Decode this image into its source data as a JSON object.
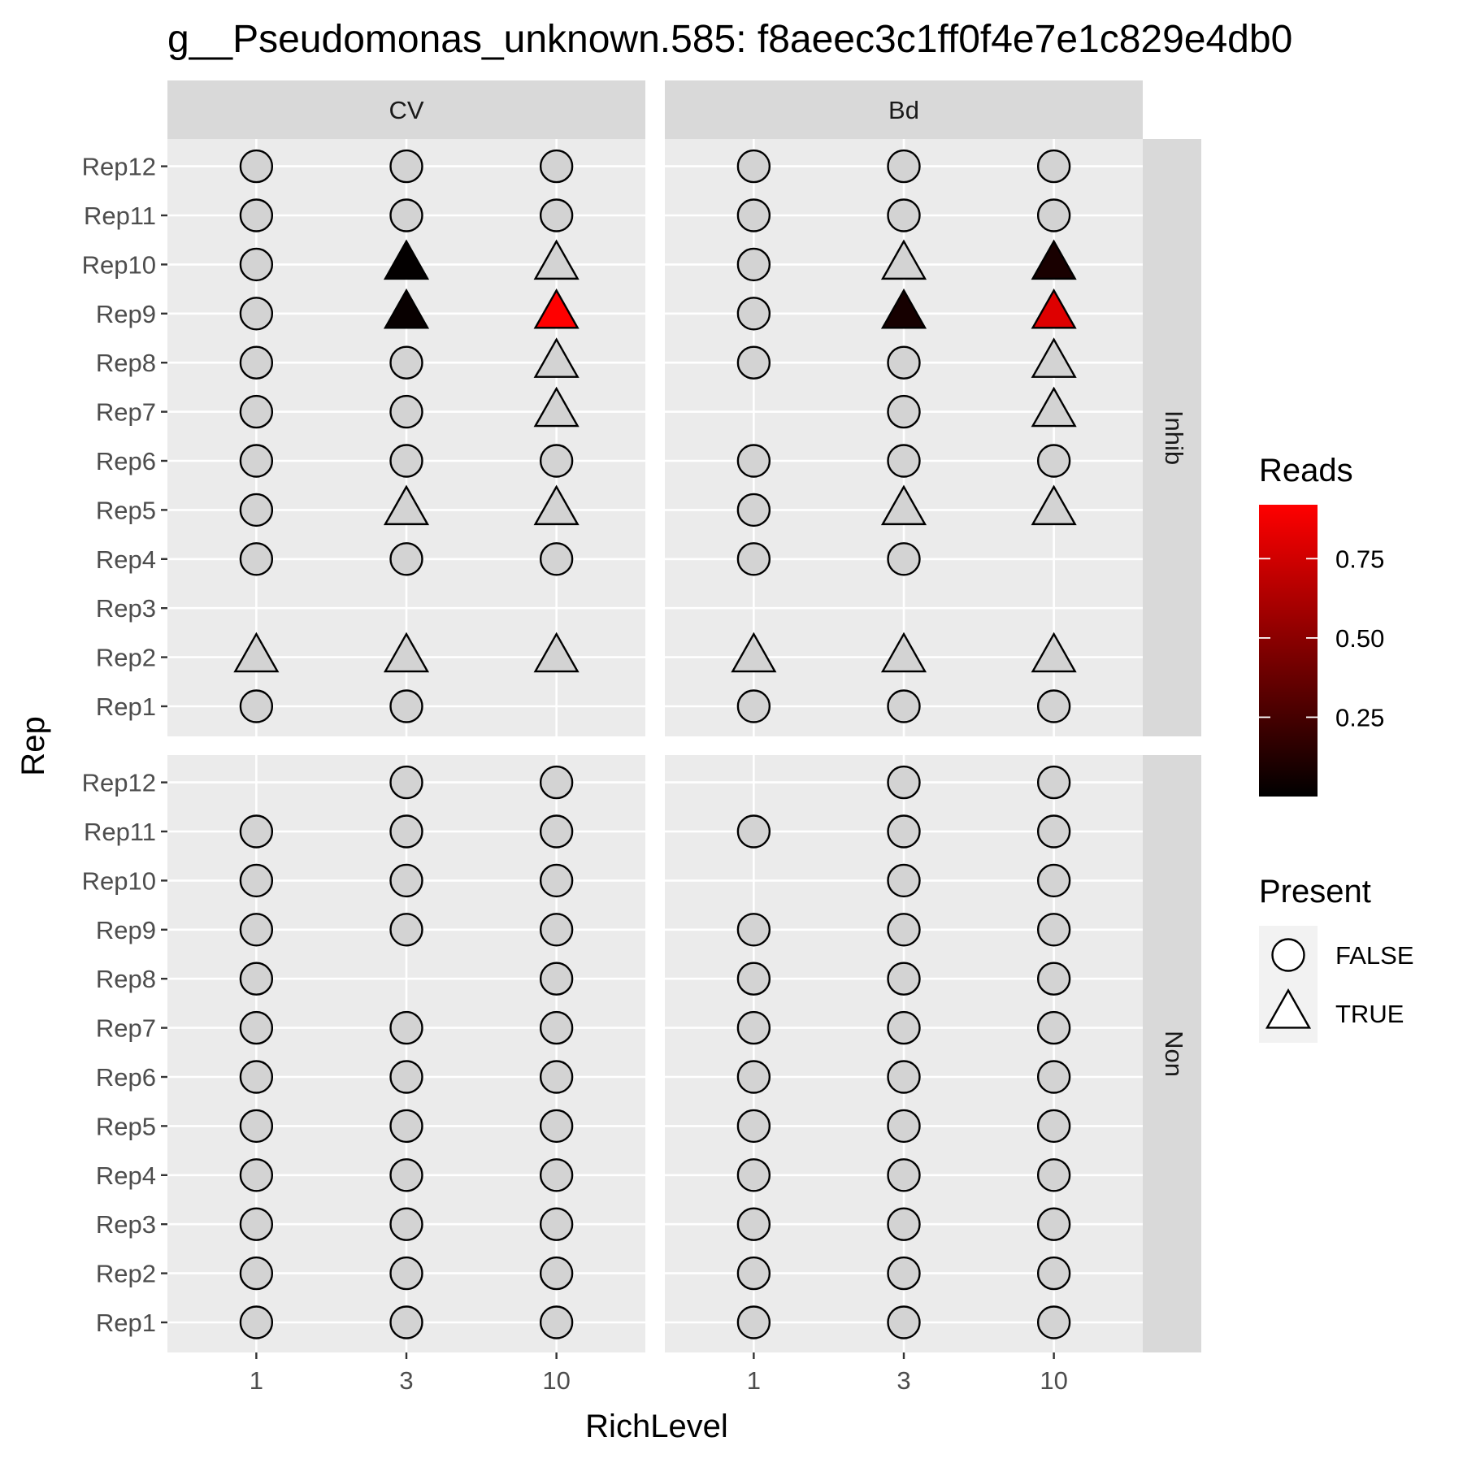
{
  "chart_data": {
    "type": "scatter",
    "title": "g__Pseudomonas_unknown.585: f8aeec3c1ff0f4e7e1c829e4db0",
    "xlabel": "RichLevel",
    "ylabel": "Rep",
    "x_categories": [
      "1",
      "3",
      "10"
    ],
    "y_categories": [
      "Rep1",
      "Rep2",
      "Rep3",
      "Rep4",
      "Rep5",
      "Rep6",
      "Rep7",
      "Rep8",
      "Rep9",
      "Rep10",
      "Rep11",
      "Rep12"
    ],
    "facet_columns": [
      "CV",
      "Bd"
    ],
    "facet_rows": [
      "Inhib",
      "Non"
    ],
    "grid": true,
    "legends": {
      "reads": {
        "title": "Reads",
        "ticks": [
          0.25,
          0.5,
          0.75
        ],
        "tick_labels": [
          "0.25",
          "0.50",
          "0.75"
        ],
        "range": [
          0.0,
          0.92
        ],
        "low_color": "#000000",
        "high_color": "#ff0000",
        "placement": "right"
      },
      "present": {
        "title": "Present",
        "entries": [
          {
            "label": "FALSE",
            "shape": "circle"
          },
          {
            "label": "TRUE",
            "shape": "triangle"
          }
        ],
        "placement": "right"
      }
    },
    "na_fill_color": "#d3d3d3",
    "panels": [
      {
        "col": "CV",
        "row": "Inhib",
        "points": [
          {
            "x": "1",
            "rep": "Rep12",
            "present": false
          },
          {
            "x": "1",
            "rep": "Rep11",
            "present": false
          },
          {
            "x": "1",
            "rep": "Rep10",
            "present": false
          },
          {
            "x": "1",
            "rep": "Rep9",
            "present": false
          },
          {
            "x": "1",
            "rep": "Rep8",
            "present": false
          },
          {
            "x": "1",
            "rep": "Rep7",
            "present": false
          },
          {
            "x": "1",
            "rep": "Rep6",
            "present": false
          },
          {
            "x": "1",
            "rep": "Rep5",
            "present": false
          },
          {
            "x": "1",
            "rep": "Rep4",
            "present": false
          },
          {
            "x": "1",
            "rep": "Rep2",
            "present": true
          },
          {
            "x": "1",
            "rep": "Rep1",
            "present": false
          },
          {
            "x": "3",
            "rep": "Rep12",
            "present": false
          },
          {
            "x": "3",
            "rep": "Rep11",
            "present": false
          },
          {
            "x": "3",
            "rep": "Rep10",
            "present": true,
            "reads": 0.01
          },
          {
            "x": "3",
            "rep": "Rep9",
            "present": true,
            "reads": 0.03
          },
          {
            "x": "3",
            "rep": "Rep8",
            "present": false
          },
          {
            "x": "3",
            "rep": "Rep7",
            "present": false
          },
          {
            "x": "3",
            "rep": "Rep6",
            "present": false
          },
          {
            "x": "3",
            "rep": "Rep5",
            "present": true
          },
          {
            "x": "3",
            "rep": "Rep4",
            "present": false
          },
          {
            "x": "3",
            "rep": "Rep2",
            "present": true
          },
          {
            "x": "3",
            "rep": "Rep1",
            "present": false
          },
          {
            "x": "10",
            "rep": "Rep12",
            "present": false
          },
          {
            "x": "10",
            "rep": "Rep11",
            "present": false
          },
          {
            "x": "10",
            "rep": "Rep10",
            "present": true
          },
          {
            "x": "10",
            "rep": "Rep9",
            "present": true,
            "reads": 0.92
          },
          {
            "x": "10",
            "rep": "Rep8",
            "present": true
          },
          {
            "x": "10",
            "rep": "Rep7",
            "present": true
          },
          {
            "x": "10",
            "rep": "Rep6",
            "present": false
          },
          {
            "x": "10",
            "rep": "Rep5",
            "present": true
          },
          {
            "x": "10",
            "rep": "Rep4",
            "present": false
          },
          {
            "x": "10",
            "rep": "Rep2",
            "present": true
          }
        ]
      },
      {
        "col": "Bd",
        "row": "Inhib",
        "points": [
          {
            "x": "1",
            "rep": "Rep12",
            "present": false
          },
          {
            "x": "1",
            "rep": "Rep11",
            "present": false
          },
          {
            "x": "1",
            "rep": "Rep10",
            "present": false
          },
          {
            "x": "1",
            "rep": "Rep9",
            "present": false
          },
          {
            "x": "1",
            "rep": "Rep8",
            "present": false
          },
          {
            "x": "1",
            "rep": "Rep6",
            "present": false
          },
          {
            "x": "1",
            "rep": "Rep5",
            "present": false
          },
          {
            "x": "1",
            "rep": "Rep4",
            "present": false
          },
          {
            "x": "1",
            "rep": "Rep2",
            "present": true
          },
          {
            "x": "1",
            "rep": "Rep1",
            "present": false
          },
          {
            "x": "3",
            "rep": "Rep12",
            "present": false
          },
          {
            "x": "3",
            "rep": "Rep11",
            "present": false
          },
          {
            "x": "3",
            "rep": "Rep10",
            "present": true
          },
          {
            "x": "3",
            "rep": "Rep9",
            "present": true,
            "reads": 0.08
          },
          {
            "x": "3",
            "rep": "Rep8",
            "present": false
          },
          {
            "x": "3",
            "rep": "Rep7",
            "present": false
          },
          {
            "x": "3",
            "rep": "Rep6",
            "present": false
          },
          {
            "x": "3",
            "rep": "Rep5",
            "present": true
          },
          {
            "x": "3",
            "rep": "Rep4",
            "present": false
          },
          {
            "x": "3",
            "rep": "Rep2",
            "present": true
          },
          {
            "x": "3",
            "rep": "Rep1",
            "present": false
          },
          {
            "x": "10",
            "rep": "Rep12",
            "present": false
          },
          {
            "x": "10",
            "rep": "Rep11",
            "present": false
          },
          {
            "x": "10",
            "rep": "Rep10",
            "present": true,
            "reads": 0.09
          },
          {
            "x": "10",
            "rep": "Rep9",
            "present": true,
            "reads": 0.8
          },
          {
            "x": "10",
            "rep": "Rep8",
            "present": true
          },
          {
            "x": "10",
            "rep": "Rep7",
            "present": true
          },
          {
            "x": "10",
            "rep": "Rep6",
            "present": false
          },
          {
            "x": "10",
            "rep": "Rep5",
            "present": true
          },
          {
            "x": "10",
            "rep": "Rep2",
            "present": true
          },
          {
            "x": "10",
            "rep": "Rep1",
            "present": false
          }
        ]
      },
      {
        "col": "CV",
        "row": "Non",
        "points": [
          {
            "x": "1",
            "rep": "Rep11",
            "present": false
          },
          {
            "x": "1",
            "rep": "Rep10",
            "present": false
          },
          {
            "x": "1",
            "rep": "Rep9",
            "present": false
          },
          {
            "x": "1",
            "rep": "Rep8",
            "present": false
          },
          {
            "x": "1",
            "rep": "Rep7",
            "present": false
          },
          {
            "x": "1",
            "rep": "Rep6",
            "present": false
          },
          {
            "x": "1",
            "rep": "Rep5",
            "present": false
          },
          {
            "x": "1",
            "rep": "Rep4",
            "present": false
          },
          {
            "x": "1",
            "rep": "Rep3",
            "present": false
          },
          {
            "x": "1",
            "rep": "Rep2",
            "present": false
          },
          {
            "x": "1",
            "rep": "Rep1",
            "present": false
          },
          {
            "x": "3",
            "rep": "Rep12",
            "present": false
          },
          {
            "x": "3",
            "rep": "Rep11",
            "present": false
          },
          {
            "x": "3",
            "rep": "Rep10",
            "present": false
          },
          {
            "x": "3",
            "rep": "Rep9",
            "present": false
          },
          {
            "x": "3",
            "rep": "Rep7",
            "present": false
          },
          {
            "x": "3",
            "rep": "Rep6",
            "present": false
          },
          {
            "x": "3",
            "rep": "Rep5",
            "present": false
          },
          {
            "x": "3",
            "rep": "Rep4",
            "present": false
          },
          {
            "x": "3",
            "rep": "Rep3",
            "present": false
          },
          {
            "x": "3",
            "rep": "Rep2",
            "present": false
          },
          {
            "x": "3",
            "rep": "Rep1",
            "present": false
          },
          {
            "x": "10",
            "rep": "Rep12",
            "present": false
          },
          {
            "x": "10",
            "rep": "Rep11",
            "present": false
          },
          {
            "x": "10",
            "rep": "Rep10",
            "present": false
          },
          {
            "x": "10",
            "rep": "Rep9",
            "present": false
          },
          {
            "x": "10",
            "rep": "Rep8",
            "present": false
          },
          {
            "x": "10",
            "rep": "Rep7",
            "present": false
          },
          {
            "x": "10",
            "rep": "Rep6",
            "present": false
          },
          {
            "x": "10",
            "rep": "Rep5",
            "present": false
          },
          {
            "x": "10",
            "rep": "Rep4",
            "present": false
          },
          {
            "x": "10",
            "rep": "Rep3",
            "present": false
          },
          {
            "x": "10",
            "rep": "Rep2",
            "present": false
          },
          {
            "x": "10",
            "rep": "Rep1",
            "present": false
          }
        ]
      },
      {
        "col": "Bd",
        "row": "Non",
        "points": [
          {
            "x": "1",
            "rep": "Rep11",
            "present": false
          },
          {
            "x": "1",
            "rep": "Rep9",
            "present": false
          },
          {
            "x": "1",
            "rep": "Rep8",
            "present": false
          },
          {
            "x": "1",
            "rep": "Rep7",
            "present": false
          },
          {
            "x": "1",
            "rep": "Rep6",
            "present": false
          },
          {
            "x": "1",
            "rep": "Rep5",
            "present": false
          },
          {
            "x": "1",
            "rep": "Rep4",
            "present": false
          },
          {
            "x": "1",
            "rep": "Rep3",
            "present": false
          },
          {
            "x": "1",
            "rep": "Rep2",
            "present": false
          },
          {
            "x": "1",
            "rep": "Rep1",
            "present": false
          },
          {
            "x": "3",
            "rep": "Rep12",
            "present": false
          },
          {
            "x": "3",
            "rep": "Rep11",
            "present": false
          },
          {
            "x": "3",
            "rep": "Rep10",
            "present": false
          },
          {
            "x": "3",
            "rep": "Rep9",
            "present": false
          },
          {
            "x": "3",
            "rep": "Rep8",
            "present": false
          },
          {
            "x": "3",
            "rep": "Rep7",
            "present": false
          },
          {
            "x": "3",
            "rep": "Rep6",
            "present": false
          },
          {
            "x": "3",
            "rep": "Rep5",
            "present": false
          },
          {
            "x": "3",
            "rep": "Rep4",
            "present": false
          },
          {
            "x": "3",
            "rep": "Rep3",
            "present": false
          },
          {
            "x": "3",
            "rep": "Rep2",
            "present": false
          },
          {
            "x": "3",
            "rep": "Rep1",
            "present": false
          },
          {
            "x": "10",
            "rep": "Rep12",
            "present": false
          },
          {
            "x": "10",
            "rep": "Rep11",
            "present": false
          },
          {
            "x": "10",
            "rep": "Rep10",
            "present": false
          },
          {
            "x": "10",
            "rep": "Rep9",
            "present": false
          },
          {
            "x": "10",
            "rep": "Rep8",
            "present": false
          },
          {
            "x": "10",
            "rep": "Rep7",
            "present": false
          },
          {
            "x": "10",
            "rep": "Rep6",
            "present": false
          },
          {
            "x": "10",
            "rep": "Rep5",
            "present": false
          },
          {
            "x": "10",
            "rep": "Rep4",
            "present": false
          },
          {
            "x": "10",
            "rep": "Rep3",
            "present": false
          },
          {
            "x": "10",
            "rep": "Rep2",
            "present": false
          },
          {
            "x": "10",
            "rep": "Rep1",
            "present": false
          }
        ]
      }
    ]
  }
}
